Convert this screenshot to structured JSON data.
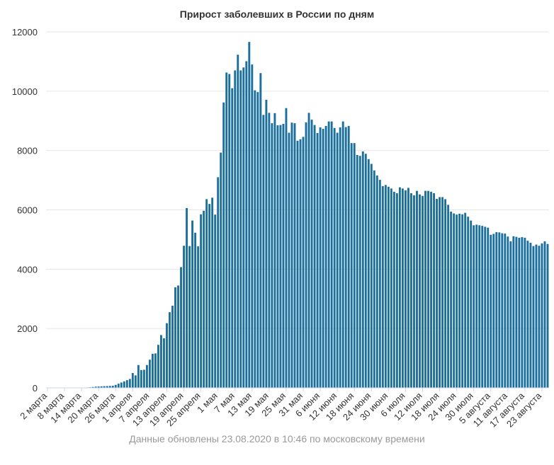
{
  "chart_data": {
    "type": "bar",
    "title": "Прирост заболевших в России по дням",
    "footer": "Данные обновлены 23.08.2020 в 10:46 по московскому времени",
    "xlabel": "",
    "ylabel": "",
    "ylim": [
      0,
      12000
    ],
    "y_ticks": [
      "0",
      "2000",
      "4000",
      "6000",
      "8000",
      "10000",
      "12000"
    ],
    "grid": true,
    "bar_color": "#1b6f9c",
    "x_tick_labels": [
      "2 марта",
      "8 марта",
      "14 марта",
      "20 марта",
      "26 марта",
      "1 апреля",
      "7 апреля",
      "13 апреля",
      "19 апреля",
      "25 апреля",
      "1 мая",
      "7 мая",
      "13 мая",
      "19 мая",
      "25 мая",
      "31 мая",
      "6 июня",
      "12 июня",
      "18 июня",
      "24 июня",
      "30 июня",
      "6 июля",
      "12 июля",
      "18 июля",
      "24 июля",
      "30 июля",
      "5 августа",
      "11 августа",
      "17 августа",
      "23 августа"
    ],
    "start_label": "2 марта",
    "end_label": "23 августа",
    "values": [
      0,
      1,
      1,
      1,
      1,
      1,
      1,
      1,
      2,
      3,
      4,
      6,
      10,
      10,
      15,
      20,
      30,
      40,
      45,
      50,
      55,
      60,
      65,
      70,
      100,
      140,
      180,
      220,
      260,
      300,
      500,
      420,
      770,
      600,
      610,
      770,
      950,
      1150,
      1160,
      1450,
      1780,
      1670,
      2180,
      2550,
      2770,
      3390,
      3450,
      4070,
      4790,
      6060,
      4780,
      5640,
      5230,
      4770,
      5850,
      5970,
      6360,
      6200,
      6410,
      5840,
      7100,
      7930,
      9620,
      10630,
      10580,
      10100,
      10700,
      11230,
      10700,
      10800,
      11010,
      11660,
      10900,
      10030,
      9970,
      10610,
      9200,
      9710,
      9270,
      8920,
      9260,
      8850,
      8860,
      8900,
      9430,
      8600,
      8940,
      8920,
      8330,
      8380,
      8460,
      8950,
      9270,
      9040,
      8860,
      8590,
      8780,
      8730,
      8830,
      8980,
      8980,
      8760,
      8600,
      8780,
      8980,
      8790,
      8830,
      8250,
      8250,
      7850,
      7820,
      7970,
      7890,
      7710,
      7550,
      7330,
      7160,
      7010,
      6800,
      6840,
      6780,
      6720,
      6610,
      6560,
      6760,
      6720,
      6660,
      6740,
      6560,
      6490,
      6640,
      6520,
      6470,
      6640,
      6640,
      6610,
      6560,
      6370,
      6430,
      6430,
      6360,
      6170,
      5940,
      5880,
      5840,
      5870,
      5850,
      5900,
      5770,
      5640,
      5480,
      5500,
      5480,
      5460,
      5430,
      5400,
      5160,
      5190,
      5250,
      5240,
      5210,
      5200,
      5100,
      4940,
      5110,
      5090,
      5060,
      5080,
      5060,
      4960,
      4890,
      4780,
      4830,
      4790,
      4870,
      4940,
      4850
    ]
  }
}
